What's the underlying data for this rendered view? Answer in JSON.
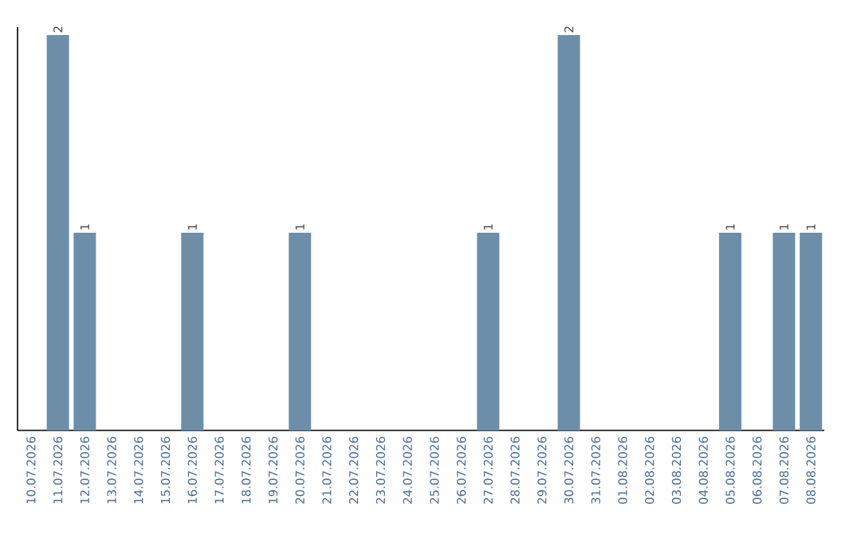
{
  "chart_data": {
    "type": "bar",
    "categories": [
      "10.07.2026",
      "11.07.2026",
      "12.07.2026",
      "13.07.2026",
      "14.07.2026",
      "15.07.2026",
      "16.07.2026",
      "17.07.2026",
      "18.07.2026",
      "19.07.2026",
      "20.07.2026",
      "21.07.2026",
      "22.07.2026",
      "23.07.2026",
      "24.07.2026",
      "25.07.2026",
      "26.07.2026",
      "27.07.2026",
      "28.07.2026",
      "29.07.2026",
      "30.07.2026",
      "31.07.2026",
      "01.08.2026",
      "02.08.2026",
      "03.08.2026",
      "04.08.2026",
      "05.08.2026",
      "06.08.2026",
      "07.08.2026",
      "08.08.2026"
    ],
    "values": [
      0,
      2,
      1,
      0,
      0,
      0,
      1,
      0,
      0,
      0,
      1,
      0,
      0,
      0,
      0,
      0,
      0,
      1,
      0,
      0,
      2,
      0,
      0,
      0,
      0,
      0,
      1,
      0,
      1,
      1
    ],
    "value_labels": [
      null,
      "2",
      "1",
      null,
      null,
      null,
      "1",
      null,
      null,
      null,
      "1",
      null,
      null,
      null,
      null,
      null,
      null,
      "1",
      null,
      null,
      "2",
      null,
      null,
      null,
      null,
      null,
      "1",
      null,
      "1",
      "1"
    ],
    "color": "#6d8ea9",
    "tick_labels": "x"
  }
}
